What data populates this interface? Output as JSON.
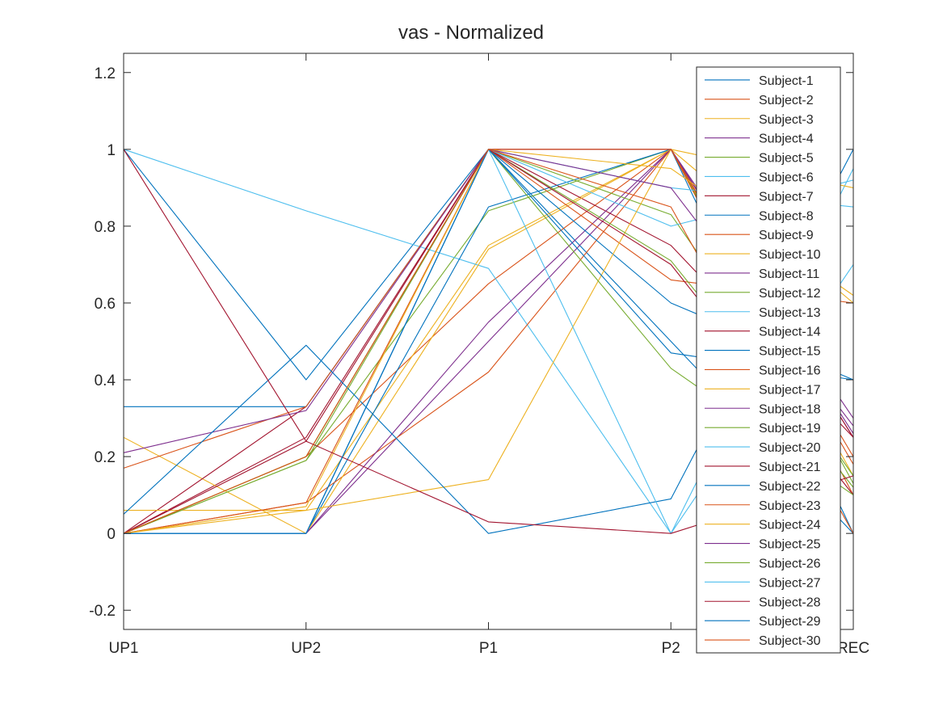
{
  "chart_data": {
    "type": "line",
    "title": "vas - Normalized",
    "xlabel": "",
    "ylabel": "",
    "categories": [
      "UP1",
      "UP2",
      "P1",
      "P2",
      "REC"
    ],
    "ylim": [
      -0.25,
      1.25
    ],
    "yticks": [
      -0.2,
      0,
      0.2,
      0.4,
      0.6,
      0.8,
      1,
      1.2
    ],
    "ytick_labels": [
      "-0.2",
      "0",
      "0.2",
      "0.4",
      "0.6",
      "0.8",
      "1",
      "1.2"
    ],
    "grid": false,
    "legend_position": "top-right",
    "palette": [
      "#0072BD",
      "#D95319",
      "#EDB120",
      "#7E2F8E",
      "#77AC30",
      "#4DBEEE",
      "#A2142F"
    ],
    "series": [
      {
        "name": "Subject-1",
        "values": [
          1.0,
          0.4,
          1.0,
          0.5,
          0.0
        ]
      },
      {
        "name": "Subject-2",
        "values": [
          0.0,
          0.2,
          0.65,
          1.0,
          0.2
        ]
      },
      {
        "name": "Subject-3",
        "values": [
          0.0,
          0.06,
          0.75,
          1.0,
          0.15
        ]
      },
      {
        "name": "Subject-4",
        "values": [
          0.0,
          0.0,
          0.5,
          1.0,
          0.25
        ]
      },
      {
        "name": "Subject-5",
        "values": [
          0.0,
          0.19,
          0.84,
          1.0,
          0.13
        ]
      },
      {
        "name": "Subject-6",
        "values": [
          1.0,
          0.84,
          0.69,
          0.0,
          0.95
        ]
      },
      {
        "name": "Subject-7",
        "values": [
          0.0,
          0.25,
          1.0,
          0.75,
          0.25
        ]
      },
      {
        "name": "Subject-8",
        "values": [
          0.0,
          0.0,
          0.85,
          1.0,
          0.0
        ]
      },
      {
        "name": "Subject-9",
        "values": [
          0.0,
          0.08,
          0.42,
          1.0,
          0.1
        ]
      },
      {
        "name": "Subject-10",
        "values": [
          0.25,
          0.0,
          0.74,
          1.0,
          0.6
        ]
      },
      {
        "name": "Subject-11",
        "values": [
          0.0,
          0.0,
          0.55,
          1.0,
          0.3
        ]
      },
      {
        "name": "Subject-12",
        "values": [
          0.0,
          0.2,
          1.0,
          0.83,
          0.15
        ]
      },
      {
        "name": "Subject-13",
        "values": [
          0.0,
          0.0,
          1.0,
          0.8,
          0.92
        ]
      },
      {
        "name": "Subject-14",
        "values": [
          0.0,
          0.33,
          1.0,
          1.0,
          0.25
        ]
      },
      {
        "name": "Subject-15",
        "values": [
          0.33,
          0.33,
          1.0,
          0.6,
          0.4
        ]
      },
      {
        "name": "Subject-16",
        "values": [
          0.17,
          0.33,
          1.0,
          0.66,
          0.6
        ]
      },
      {
        "name": "Subject-17",
        "values": [
          0.06,
          0.06,
          0.14,
          1.0,
          0.9
        ]
      },
      {
        "name": "Subject-18",
        "values": [
          0.21,
          0.32,
          1.0,
          1.0,
          0.26
        ]
      },
      {
        "name": "Subject-19",
        "values": [
          0.0,
          0.19,
          1.0,
          0.71,
          0.12
        ]
      },
      {
        "name": "Subject-20",
        "values": [
          0.0,
          0.0,
          1.0,
          0.9,
          0.85
        ]
      },
      {
        "name": "Subject-21",
        "values": [
          0.0,
          0.24,
          1.0,
          0.7,
          0.1
        ]
      },
      {
        "name": "Subject-22",
        "values": [
          0.05,
          0.49,
          0.0,
          0.09,
          1.0
        ]
      },
      {
        "name": "Subject-23",
        "values": [
          0.0,
          0.08,
          1.0,
          1.0,
          0.18
        ]
      },
      {
        "name": "Subject-24",
        "values": [
          0.0,
          0.07,
          1.0,
          0.95,
          0.62
        ]
      },
      {
        "name": "Subject-25",
        "values": [
          0.0,
          0.0,
          1.0,
          0.9,
          0.28
        ]
      },
      {
        "name": "Subject-26",
        "values": [
          0.0,
          0.2,
          1.0,
          0.43,
          0.1
        ]
      },
      {
        "name": "Subject-27",
        "values": [
          0.0,
          0.0,
          1.0,
          0.0,
          0.7
        ]
      },
      {
        "name": "Subject-28",
        "values": [
          1.0,
          0.24,
          0.03,
          0.0,
          0.15
        ]
      },
      {
        "name": "Subject-29",
        "values": [
          0.0,
          0.0,
          1.0,
          0.47,
          0.4
        ]
      },
      {
        "name": "Subject-30",
        "values": [
          0.0,
          0.2,
          1.0,
          0.85,
          0.0
        ]
      }
    ]
  }
}
